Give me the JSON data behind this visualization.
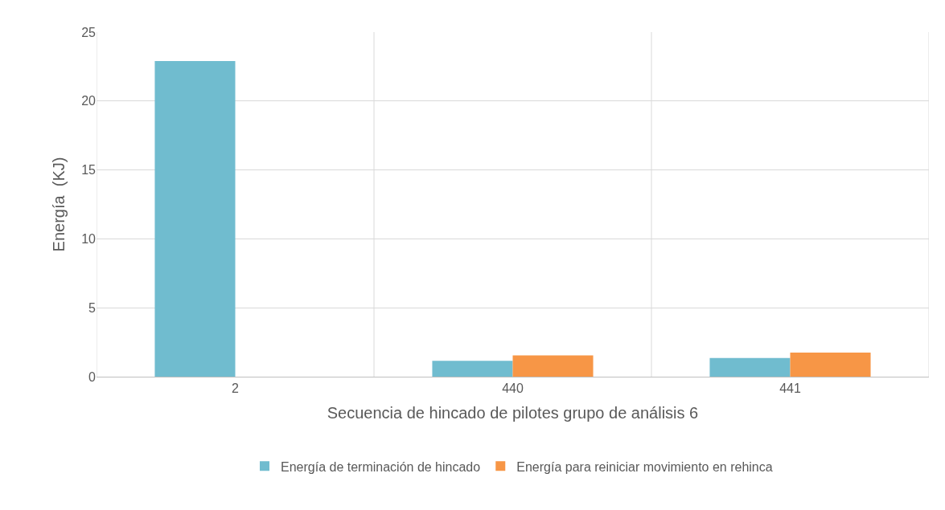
{
  "chart_data": {
    "type": "bar",
    "categories": [
      "2",
      "440",
      "441"
    ],
    "series": [
      {
        "name": "Energía de terminación de hincado",
        "color": "#70bccf",
        "values": [
          22.9,
          1.15,
          1.35
        ]
      },
      {
        "name": "Energía para reiniciar movimiento en rehinca",
        "color": "#f79646",
        "values": [
          null,
          1.55,
          1.75
        ]
      }
    ],
    "xlabel": "Secuencia de hincado de pilotes grupo de análisis 6",
    "ylabel": "Energía  (KJ)",
    "ylim": [
      0,
      25
    ],
    "yticks": [
      0,
      5,
      10,
      15,
      20,
      25
    ],
    "grid": true,
    "legend": "bottom"
  }
}
